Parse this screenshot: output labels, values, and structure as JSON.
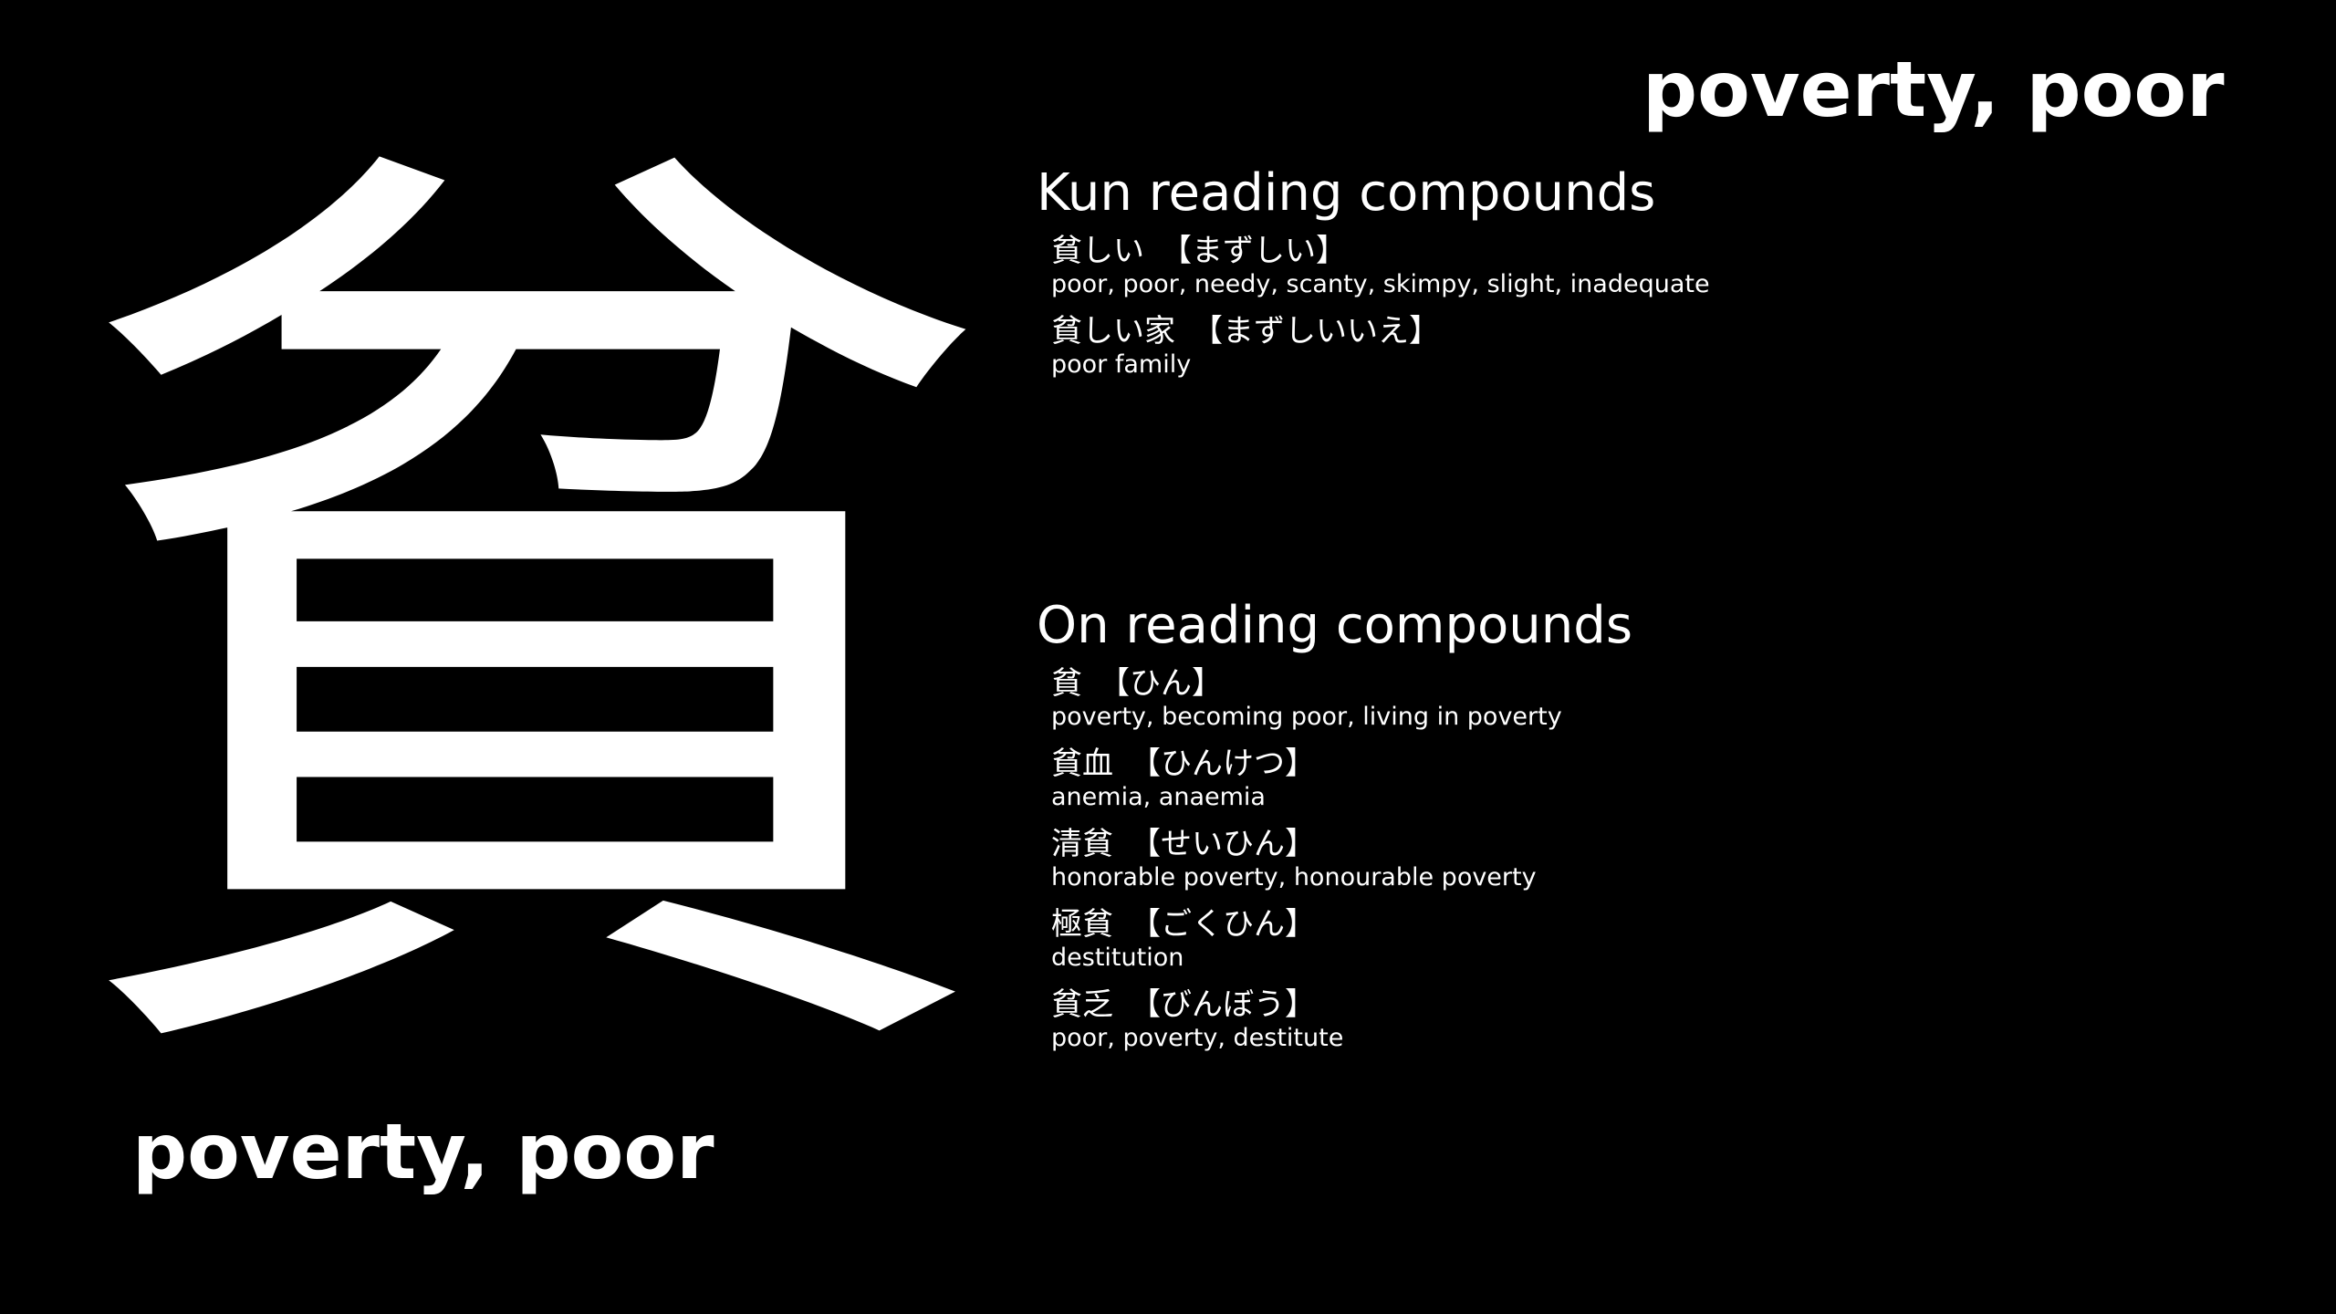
{
  "kanji": "貧",
  "meaning": "poverty, poor",
  "kun": {
    "title": "Kun reading compounds",
    "entries": [
      {
        "word": "貧しい",
        "reading": "【まずしい】",
        "gloss": "poor, poor, needy, scanty, skimpy, slight, inadequate"
      },
      {
        "word": "貧しい家",
        "reading": "【まずしいいえ】",
        "gloss": "poor family"
      }
    ]
  },
  "on": {
    "title": "On reading compounds",
    "entries": [
      {
        "word": "貧",
        "reading": "【ひん】",
        "gloss": "poverty, becoming poor, living in poverty"
      },
      {
        "word": "貧血",
        "reading": "【ひんけつ】",
        "gloss": "anemia, anaemia"
      },
      {
        "word": "清貧",
        "reading": "【せいひん】",
        "gloss": "honorable poverty, honourable poverty"
      },
      {
        "word": "極貧",
        "reading": "【ごくひん】",
        "gloss": "destitution"
      },
      {
        "word": "貧乏",
        "reading": "【びんぼう】",
        "gloss": "poor, poverty, destitute"
      }
    ]
  }
}
